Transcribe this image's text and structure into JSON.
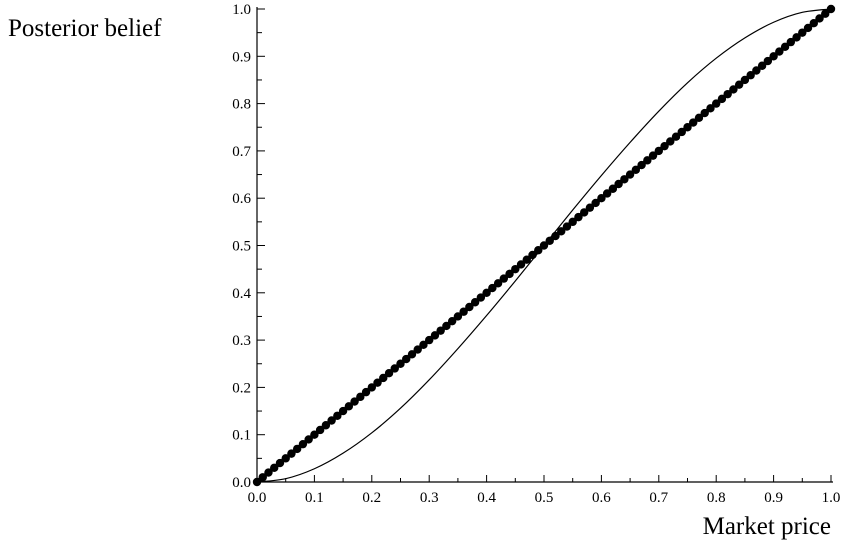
{
  "chart_data": {
    "type": "line",
    "title": "",
    "xlabel": "Market price",
    "ylabel": "Posterior belief",
    "xlim": [
      0.0,
      1.0
    ],
    "ylim": [
      0.0,
      1.0
    ],
    "x_ticks": [
      "0.0",
      "0.1",
      "0.2",
      "0.3",
      "0.4",
      "0.5",
      "0.6",
      "0.7",
      "0.8",
      "0.9",
      "1.0"
    ],
    "y_ticks": [
      "0.0",
      "0.1",
      "0.2",
      "0.3",
      "0.4",
      "0.5",
      "0.6",
      "0.7",
      "0.8",
      "0.9",
      "1.0"
    ],
    "grid": false,
    "legend": "none",
    "series": [
      {
        "style": "thick line with circular markers",
        "color": "#000000",
        "x": [
          0.0,
          0.1,
          0.2,
          0.3,
          0.4,
          0.5,
          0.6,
          0.7,
          0.8,
          0.9,
          1.0
        ],
        "y": [
          0.0,
          0.1,
          0.2,
          0.3,
          0.4,
          0.5,
          0.6,
          0.7,
          0.8,
          0.9,
          1.0
        ]
      },
      {
        "style": "thin line",
        "color": "#000000",
        "x": [
          0.0,
          0.05,
          0.1,
          0.15,
          0.2,
          0.25,
          0.3,
          0.35,
          0.4,
          0.45,
          0.5,
          0.55,
          0.6,
          0.65,
          0.7,
          0.75,
          0.8,
          0.85,
          0.9,
          0.95,
          1.0
        ],
        "y": [
          0.0,
          0.007,
          0.028,
          0.061,
          0.104,
          0.156,
          0.216,
          0.282,
          0.352,
          0.425,
          0.5,
          0.575,
          0.648,
          0.718,
          0.784,
          0.844,
          0.896,
          0.939,
          0.972,
          0.993,
          1.0
        ]
      }
    ]
  }
}
